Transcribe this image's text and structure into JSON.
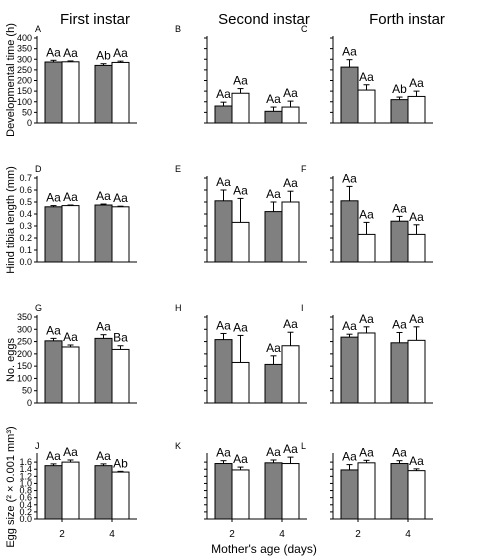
{
  "figure": {
    "column_titles": [
      "First instar",
      "Second instar",
      "Forth instar"
    ],
    "row_ylabels": [
      "Developmental time (h)",
      "Hind tibia length (mm)",
      "No. eggs",
      "Egg size (² × 0.001 mm³)"
    ],
    "xlabel": "Mother's age (days)",
    "colors": {
      "dark_bar": "#808080",
      "light_bar": "#ffffff",
      "axis": "#000000"
    }
  },
  "chart_data": [
    {
      "panel": "A",
      "type": "bar",
      "categories": [
        "2",
        "4"
      ],
      "ylim": [
        0,
        400
      ],
      "yticks": [
        0,
        50,
        100,
        150,
        200,
        250,
        300,
        350,
        400
      ],
      "series": [
        {
          "values": [
            287,
            271
          ],
          "errors": [
            8,
            8
          ]
        },
        {
          "values": [
            288,
            285
          ],
          "errors": [
            4,
            6
          ]
        }
      ],
      "labels": [
        [
          "Aa",
          "Aa"
        ],
        [
          "Ab",
          "Aa"
        ]
      ]
    },
    {
      "panel": "B",
      "type": "bar",
      "categories": [
        "2",
        "4"
      ],
      "ylim": [
        0,
        400
      ],
      "series": [
        {
          "values": [
            80,
            55
          ],
          "errors": [
            18,
            20
          ]
        },
        {
          "values": [
            140,
            75
          ],
          "errors": [
            22,
            28
          ]
        }
      ],
      "labels": [
        [
          "Aa",
          "Aa"
        ],
        [
          "Aa",
          "Aa"
        ]
      ]
    },
    {
      "panel": "C",
      "type": "bar",
      "categories": [
        "2",
        "4"
      ],
      "ylim": [
        0,
        400
      ],
      "series": [
        {
          "values": [
            263,
            110
          ],
          "errors": [
            35,
            12
          ]
        },
        {
          "values": [
            155,
            125
          ],
          "errors": [
            25,
            25
          ]
        }
      ],
      "labels": [
        [
          "Aa",
          "Aa"
        ],
        [
          "Ab",
          "Aa"
        ]
      ]
    },
    {
      "panel": "D",
      "type": "bar",
      "categories": [
        "2",
        "4"
      ],
      "ylim": [
        0,
        0.7
      ],
      "yticks": [
        0,
        0.1,
        0.2,
        0.3,
        0.4,
        0.5,
        0.6,
        0.7
      ],
      "series": [
        {
          "values": [
            0.46,
            0.475
          ],
          "errors": [
            0.01,
            0.008
          ]
        },
        {
          "values": [
            0.47,
            0.46
          ],
          "errors": [
            0.005,
            0.005
          ]
        }
      ],
      "labels": [
        [
          "Aa",
          "Aa"
        ],
        [
          "Aa",
          "Aa"
        ]
      ]
    },
    {
      "panel": "E",
      "type": "bar",
      "categories": [
        "2",
        "4"
      ],
      "ylim": [
        0,
        0.7
      ],
      "series": [
        {
          "values": [
            0.51,
            0.42
          ],
          "errors": [
            0.09,
            0.08
          ]
        },
        {
          "values": [
            0.33,
            0.5
          ],
          "errors": [
            0.2,
            0.09
          ]
        }
      ],
      "labels": [
        [
          "Aa",
          "Aa"
        ],
        [
          "Aa",
          "Aa"
        ]
      ]
    },
    {
      "panel": "F",
      "type": "bar",
      "categories": [
        "2",
        "4"
      ],
      "ylim": [
        0,
        0.7
      ],
      "series": [
        {
          "values": [
            0.51,
            0.34
          ],
          "errors": [
            0.12,
            0.04
          ]
        },
        {
          "values": [
            0.23,
            0.23
          ],
          "errors": [
            0.1,
            0.08
          ]
        }
      ],
      "labels": [
        [
          "Aa",
          "Aa"
        ],
        [
          "Aa",
          "Aa"
        ]
      ]
    },
    {
      "panel": "G",
      "type": "bar",
      "categories": [
        "2",
        "4"
      ],
      "ylim": [
        0,
        350
      ],
      "yticks": [
        0,
        50,
        100,
        150,
        200,
        250,
        300,
        350
      ],
      "series": [
        {
          "values": [
            253,
            263
          ],
          "errors": [
            10,
            15
          ]
        },
        {
          "values": [
            228,
            218
          ],
          "errors": [
            8,
            15
          ]
        }
      ],
      "labels": [
        [
          "Aa",
          "Aa"
        ],
        [
          "Aa",
          "Ba"
        ]
      ]
    },
    {
      "panel": "H",
      "type": "bar",
      "categories": [
        "2",
        "4"
      ],
      "ylim": [
        0,
        350
      ],
      "series": [
        {
          "values": [
            258,
            157
          ],
          "errors": [
            25,
            35
          ]
        },
        {
          "values": [
            165,
            233
          ],
          "errors": [
            110,
            55
          ]
        }
      ],
      "labels": [
        [
          "Aa",
          "Aa"
        ],
        [
          "Aa",
          "Aa"
        ]
      ]
    },
    {
      "panel": "I",
      "type": "bar",
      "categories": [
        "2",
        "4"
      ],
      "ylim": [
        0,
        350
      ],
      "series": [
        {
          "values": [
            268,
            245
          ],
          "errors": [
            12,
            42
          ]
        },
        {
          "values": [
            285,
            255
          ],
          "errors": [
            25,
            55
          ]
        }
      ],
      "labels": [
        [
          "Aa",
          "Aa"
        ],
        [
          "Aa",
          "Aa"
        ]
      ]
    },
    {
      "panel": "J",
      "type": "bar",
      "categories": [
        "2",
        "4"
      ],
      "ylim": [
        0,
        1.8
      ],
      "yticks": [
        0,
        0.2,
        0.4,
        0.6,
        0.8,
        1.0,
        1.2,
        1.4,
        1.6
      ],
      "series": [
        {
          "values": [
            1.5,
            1.5
          ],
          "errors": [
            0.05,
            0.05
          ]
        },
        {
          "values": [
            1.6,
            1.32
          ],
          "errors": [
            0.06,
            0.02
          ]
        }
      ],
      "labels": [
        [
          "Aa",
          "Aa"
        ],
        [
          "Aa",
          "Ab"
        ]
      ]
    },
    {
      "panel": "K",
      "type": "bar",
      "categories": [
        "2",
        "4"
      ],
      "ylim": [
        0,
        1.8
      ],
      "series": [
        {
          "values": [
            1.56,
            1.58
          ],
          "errors": [
            0.08,
            0.08
          ]
        },
        {
          "values": [
            1.38,
            1.56
          ],
          "errors": [
            0.08,
            0.18
          ]
        }
      ],
      "labels": [
        [
          "Aa",
          "Aa"
        ],
        [
          "Aa",
          "Aa"
        ]
      ]
    },
    {
      "panel": "L",
      "type": "bar",
      "categories": [
        "2",
        "4"
      ],
      "ylim": [
        0,
        1.8
      ],
      "series": [
        {
          "values": [
            1.38,
            1.56
          ],
          "errors": [
            0.15,
            0.08
          ]
        },
        {
          "values": [
            1.58,
            1.36
          ],
          "errors": [
            0.07,
            0.05
          ]
        }
      ],
      "labels": [
        [
          "Aa",
          "Aa"
        ],
        [
          "Aa",
          "Aa"
        ]
      ]
    }
  ]
}
